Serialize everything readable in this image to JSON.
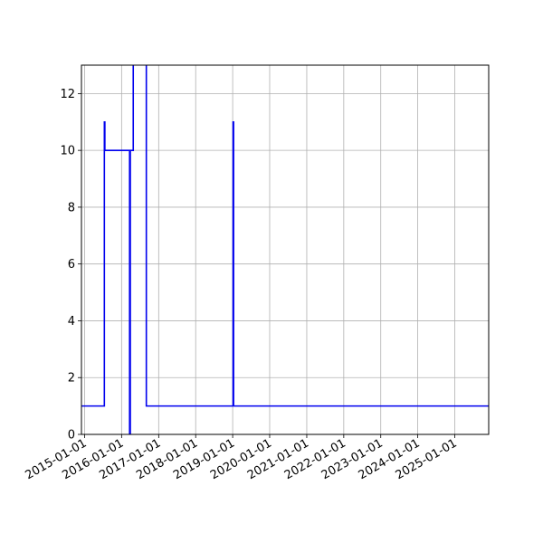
{
  "chart_data": {
    "type": "line",
    "title": "",
    "xlabel": "",
    "ylabel": "",
    "xlim": [
      "2014-12-01",
      "2025-12-01"
    ],
    "ylim": [
      0,
      13
    ],
    "x_ticks": [
      "2015-01-01",
      "2016-01-01",
      "2017-01-01",
      "2018-01-01",
      "2019-01-01",
      "2020-01-01",
      "2021-01-01",
      "2022-01-01",
      "2023-01-01",
      "2024-01-01",
      "2025-01-01"
    ],
    "y_ticks": [
      0,
      2,
      4,
      6,
      8,
      10,
      12
    ],
    "grid": true,
    "step": "post",
    "colors": {
      "line": "#0000ee",
      "grid": "#b0b0b0",
      "axes": "#000000"
    },
    "series": [
      {
        "name": "",
        "points": [
          [
            "2014-12-01",
            1
          ],
          [
            "2015-07-15",
            1
          ],
          [
            "2015-07-15",
            11
          ],
          [
            "2015-07-20",
            11
          ],
          [
            "2015-07-20",
            10
          ],
          [
            "2016-03-20",
            10
          ],
          [
            "2016-03-20",
            0
          ],
          [
            "2016-03-27",
            0
          ],
          [
            "2016-03-27",
            10
          ],
          [
            "2016-04-25",
            10
          ],
          [
            "2016-04-25",
            14
          ],
          [
            "2016-09-01",
            14
          ],
          [
            "2016-09-01",
            1
          ],
          [
            "2019-01-05",
            1
          ],
          [
            "2019-01-05",
            11
          ],
          [
            "2019-01-10",
            11
          ],
          [
            "2019-01-10",
            1
          ],
          [
            "2025-12-01",
            1
          ]
        ]
      }
    ]
  }
}
